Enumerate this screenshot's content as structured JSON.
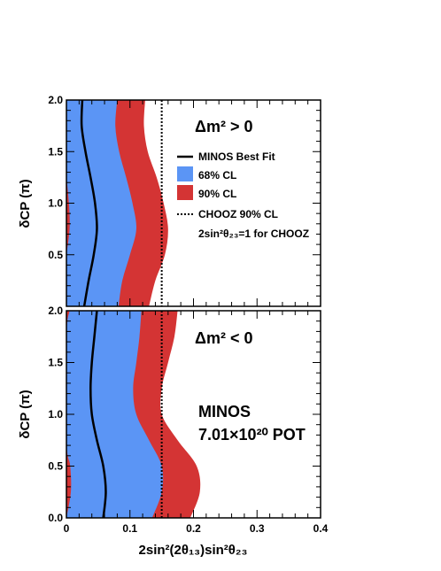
{
  "colors": {
    "cl68": "#5b95f5",
    "cl90": "#d43434",
    "line": "#000000"
  },
  "chart_data": [
    {
      "type": "area",
      "panel": "top",
      "annotation": "Δm² > 0",
      "xlim": [
        0,
        0.4
      ],
      "ylim": [
        0,
        2.0
      ],
      "xticks": [
        "0",
        "0.1",
        "0.2",
        "0.3",
        "0.4"
      ],
      "yticks": [
        "0.5",
        "1.0",
        "1.5",
        "2.0"
      ],
      "ylabel": "δCP (π)",
      "y": [
        0.0,
        0.25,
        0.5,
        0.75,
        1.0,
        1.25,
        1.5,
        1.75,
        2.0
      ],
      "best_fit": [
        0.028,
        0.035,
        0.043,
        0.048,
        0.045,
        0.038,
        0.03,
        0.024,
        0.025
      ],
      "cl68_right": [
        0.082,
        0.088,
        0.1,
        0.11,
        0.104,
        0.094,
        0.083,
        0.077,
        0.08
      ],
      "cl90_right": [
        0.13,
        0.14,
        0.155,
        0.16,
        0.153,
        0.142,
        0.128,
        0.122,
        0.124
      ],
      "cl90_left_sliver": [
        [
          0.5,
          0.0
        ],
        [
          0.75,
          0.005
        ],
        [
          1.0,
          0.004
        ],
        [
          1.25,
          0.0
        ]
      ],
      "chooz_x": 0.15,
      "legend": {
        "best_fit": "MINOS Best Fit",
        "cl68": "68% CL",
        "cl90": "90% CL",
        "chooz": "CHOOZ 90% CL",
        "chooz_note": "2sin²θ₂₃=1 for CHOOZ"
      }
    },
    {
      "type": "area",
      "panel": "bottom",
      "annotation": "Δm² < 0",
      "xlim": [
        0,
        0.4
      ],
      "ylim": [
        0,
        2.0
      ],
      "xticks": [
        "0",
        "0.1",
        "0.2",
        "0.3",
        "0.4"
      ],
      "yticks": [
        "0.0",
        "0.5",
        "1.0",
        "1.5",
        "2.0"
      ],
      "ylabel": "δCP (π)",
      "xlabel": "2sin²(2θ₁₃)sin²θ₂₃",
      "y": [
        0.0,
        0.25,
        0.5,
        0.75,
        1.0,
        1.25,
        1.5,
        1.75,
        2.0
      ],
      "best_fit": [
        0.058,
        0.062,
        0.058,
        0.048,
        0.04,
        0.038,
        0.04,
        0.044,
        0.048
      ],
      "cl68_right": [
        0.135,
        0.15,
        0.15,
        0.13,
        0.11,
        0.105,
        0.11,
        0.115,
        0.118
      ],
      "cl90_right": [
        0.195,
        0.21,
        0.205,
        0.175,
        0.15,
        0.15,
        0.16,
        0.17,
        0.175
      ],
      "cl90_left_sliver": [
        [
          0.0,
          0.0
        ],
        [
          0.25,
          0.007
        ],
        [
          0.5,
          0.006
        ],
        [
          0.75,
          0.0
        ],
        [
          1.75,
          0.0
        ],
        [
          2.0,
          0.005
        ]
      ],
      "chooz_x": 0.15,
      "text_lines": [
        "MINOS",
        "7.01×10²⁰ POT"
      ]
    }
  ]
}
